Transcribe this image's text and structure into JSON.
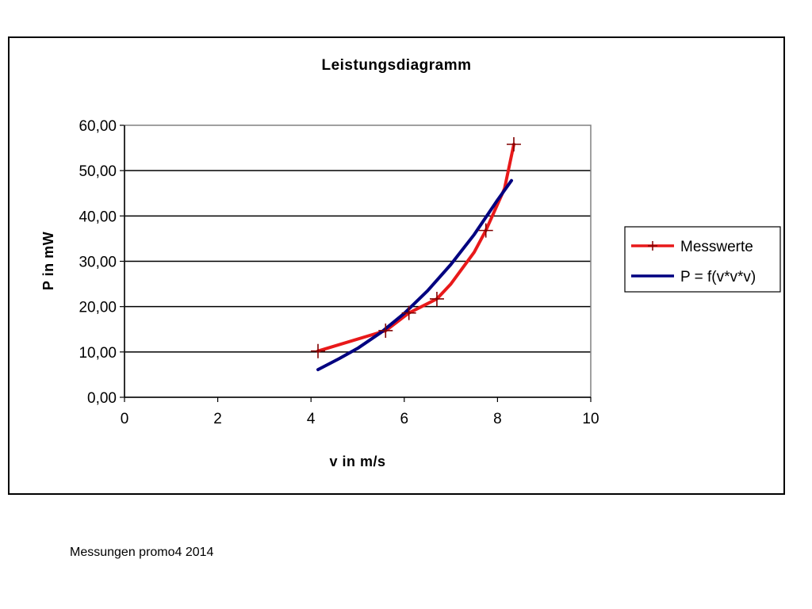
{
  "chart_data": {
    "type": "line",
    "title": "Leistungsdiagramm",
    "xlabel": "v in m/s",
    "ylabel": "P in mW",
    "xlim": [
      0,
      10
    ],
    "ylim": [
      0,
      60
    ],
    "x_ticks": [
      "0",
      "2",
      "4",
      "6",
      "8",
      "10"
    ],
    "y_ticks": [
      "0,00",
      "10,00",
      "20,00",
      "30,00",
      "40,00",
      "50,00",
      "60,00"
    ],
    "grid": "horizontal",
    "legend_position": "right",
    "series": [
      {
        "name": "Messwerte",
        "color": "#e8191a",
        "marker": "plus",
        "points": [
          {
            "x": 4.15,
            "y": 10.2
          },
          {
            "x": 5.6,
            "y": 14.7
          },
          {
            "x": 6.1,
            "y": 18.6
          },
          {
            "x": 6.7,
            "y": 21.7
          },
          {
            "x": 7.75,
            "y": 36.8
          },
          {
            "x": 8.35,
            "y": 55.8
          }
        ],
        "curve": [
          {
            "x": 4.15,
            "y": 10.2
          },
          {
            "x": 5.6,
            "y": 14.7
          },
          {
            "x": 6.1,
            "y": 18.6
          },
          {
            "x": 6.7,
            "y": 21.7
          },
          {
            "x": 7.0,
            "y": 25.0
          },
          {
            "x": 7.5,
            "y": 32.0
          },
          {
            "x": 7.75,
            "y": 36.8
          },
          {
            "x": 8.15,
            "y": 46.0
          },
          {
            "x": 8.35,
            "y": 55.8
          }
        ]
      },
      {
        "name": "P = f(v*v*v)",
        "color": "#000080",
        "points": [
          {
            "x": 4.15,
            "y": 6.1
          },
          {
            "x": 4.6,
            "y": 8.5
          },
          {
            "x": 5.0,
            "y": 10.8
          },
          {
            "x": 5.5,
            "y": 14.3
          },
          {
            "x": 6.0,
            "y": 18.5
          },
          {
            "x": 6.5,
            "y": 23.5
          },
          {
            "x": 7.0,
            "y": 29.3
          },
          {
            "x": 7.5,
            "y": 35.9
          },
          {
            "x": 8.0,
            "y": 43.5
          },
          {
            "x": 8.3,
            "y": 47.8
          }
        ]
      }
    ]
  },
  "footer": {
    "note": "Messungen promo4 2014"
  }
}
